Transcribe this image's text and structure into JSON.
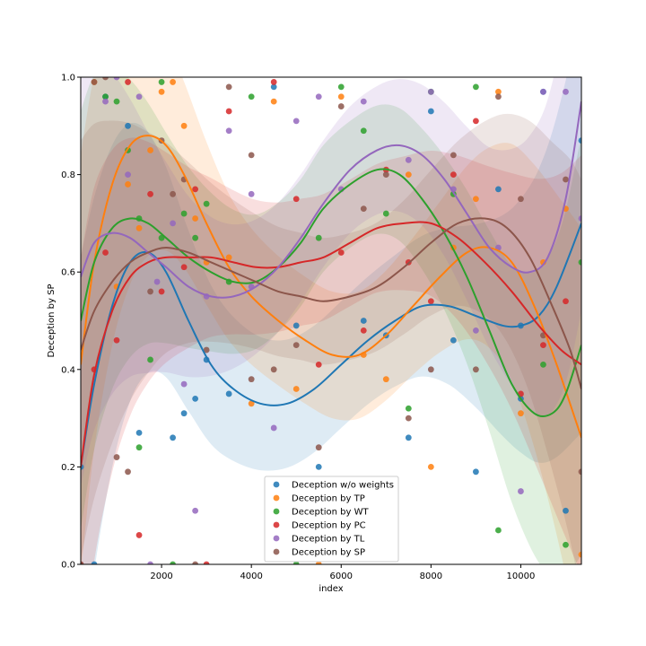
{
  "chart_data": {
    "type": "scatter",
    "xlabel": "index",
    "ylabel": "Deception by SP",
    "xlim": [
      200,
      11350
    ],
    "ylim": [
      0.0,
      1.0
    ],
    "x_ticks": [
      2000,
      4000,
      6000,
      8000,
      10000
    ],
    "y_ticks": [
      0.0,
      0.2,
      0.4,
      0.6,
      0.8,
      1.0
    ],
    "x_tick_labels": [
      "2000",
      "4000",
      "6000",
      "8000",
      "10000"
    ],
    "y_tick_labels": [
      "0.0",
      "0.2",
      "0.4",
      "0.6",
      "0.8",
      "1.0"
    ],
    "grid": false,
    "legend_position": "bottom-center",
    "series": [
      {
        "name": "Deception w/o weights",
        "color": "#1f77b4",
        "points": [
          [
            200,
            0.2
          ],
          [
            500,
            0.0
          ],
          [
            750,
            0.96
          ],
          [
            1250,
            0.9
          ],
          [
            1500,
            0.27
          ],
          [
            2250,
            0.26
          ],
          [
            2500,
            0.31
          ],
          [
            2750,
            0.34
          ],
          [
            3000,
            0.42
          ],
          [
            3500,
            0.35
          ],
          [
            4500,
            0.98
          ],
          [
            5000,
            0.49
          ],
          [
            5500,
            0.2
          ],
          [
            6500,
            0.5
          ],
          [
            7000,
            0.47
          ],
          [
            7500,
            0.26
          ],
          [
            8000,
            0.93
          ],
          [
            8500,
            0.46
          ],
          [
            9000,
            0.19
          ],
          [
            9500,
            0.77
          ],
          [
            10000,
            0.49
          ],
          [
            10000,
            0.34
          ],
          [
            10500,
            0.97
          ],
          [
            11000,
            0.11
          ],
          [
            11350,
            0.87
          ]
        ],
        "curve": [
          [
            200,
            0.2
          ],
          [
            500,
            0.37
          ],
          [
            900,
            0.53
          ],
          [
            1300,
            0.62
          ],
          [
            1700,
            0.64
          ],
          [
            2100,
            0.6
          ],
          [
            2600,
            0.5
          ],
          [
            3100,
            0.41
          ],
          [
            3600,
            0.36
          ],
          [
            4200,
            0.33
          ],
          [
            4800,
            0.33
          ],
          [
            5400,
            0.36
          ],
          [
            6000,
            0.41
          ],
          [
            6600,
            0.46
          ],
          [
            7200,
            0.5
          ],
          [
            7800,
            0.53
          ],
          [
            8400,
            0.53
          ],
          [
            9000,
            0.51
          ],
          [
            9600,
            0.49
          ],
          [
            10000,
            0.49
          ],
          [
            10400,
            0.51
          ],
          [
            10800,
            0.57
          ],
          [
            11350,
            0.7
          ]
        ]
      },
      {
        "name": "Deception by TP",
        "color": "#ff7f0e",
        "points": [
          [
            500,
            0.99
          ],
          [
            1000,
            0.57
          ],
          [
            1250,
            0.78
          ],
          [
            1500,
            0.69
          ],
          [
            1750,
            0.85
          ],
          [
            2000,
            0.97
          ],
          [
            2250,
            0.99
          ],
          [
            2500,
            0.9
          ],
          [
            2750,
            0.71
          ],
          [
            3000,
            0.62
          ],
          [
            3500,
            0.63
          ],
          [
            4000,
            0.33
          ],
          [
            4500,
            0.95
          ],
          [
            5000,
            0.36
          ],
          [
            5500,
            0.0
          ],
          [
            6000,
            0.96
          ],
          [
            6500,
            0.43
          ],
          [
            7000,
            0.38
          ],
          [
            7500,
            0.8
          ],
          [
            8000,
            0.2
          ],
          [
            8500,
            0.65
          ],
          [
            9000,
            0.75
          ],
          [
            9500,
            0.97
          ],
          [
            10000,
            0.31
          ],
          [
            10500,
            0.62
          ],
          [
            11000,
            0.73
          ],
          [
            11350,
            0.02
          ]
        ],
        "curve": [
          [
            200,
            0.41
          ],
          [
            500,
            0.62
          ],
          [
            900,
            0.78
          ],
          [
            1300,
            0.86
          ],
          [
            1700,
            0.88
          ],
          [
            2100,
            0.86
          ],
          [
            2500,
            0.8
          ],
          [
            3000,
            0.7
          ],
          [
            3500,
            0.61
          ],
          [
            4000,
            0.55
          ],
          [
            4600,
            0.5
          ],
          [
            5200,
            0.46
          ],
          [
            5800,
            0.43
          ],
          [
            6400,
            0.43
          ],
          [
            7000,
            0.47
          ],
          [
            7600,
            0.53
          ],
          [
            8200,
            0.59
          ],
          [
            8800,
            0.64
          ],
          [
            9300,
            0.65
          ],
          [
            9800,
            0.62
          ],
          [
            10300,
            0.53
          ],
          [
            10800,
            0.41
          ],
          [
            11350,
            0.26
          ]
        ]
      },
      {
        "name": "Deception by WT",
        "color": "#2ca02c",
        "points": [
          [
            750,
            0.96
          ],
          [
            1000,
            0.95
          ],
          [
            1250,
            0.85
          ],
          [
            1500,
            0.71
          ],
          [
            1500,
            0.24
          ],
          [
            1750,
            0.42
          ],
          [
            2000,
            0.99
          ],
          [
            2000,
            0.67
          ],
          [
            2250,
            0.0
          ],
          [
            2500,
            0.72
          ],
          [
            2750,
            0.67
          ],
          [
            3000,
            0.74
          ],
          [
            3500,
            0.58
          ],
          [
            4000,
            0.96
          ],
          [
            5000,
            0.0
          ],
          [
            5500,
            0.67
          ],
          [
            6000,
            0.98
          ],
          [
            6500,
            0.89
          ],
          [
            7000,
            0.72
          ],
          [
            7500,
            0.32
          ],
          [
            8000,
            0.97
          ],
          [
            8500,
            0.76
          ],
          [
            9000,
            0.98
          ],
          [
            9500,
            0.07
          ],
          [
            10500,
            0.41
          ],
          [
            11000,
            0.04
          ],
          [
            11350,
            0.62
          ]
        ],
        "curve": [
          [
            200,
            0.5
          ],
          [
            500,
            0.62
          ],
          [
            900,
            0.69
          ],
          [
            1300,
            0.71
          ],
          [
            1700,
            0.7
          ],
          [
            2100,
            0.67
          ],
          [
            2600,
            0.63
          ],
          [
            3100,
            0.6
          ],
          [
            3600,
            0.58
          ],
          [
            4100,
            0.58
          ],
          [
            4600,
            0.61
          ],
          [
            5100,
            0.66
          ],
          [
            5600,
            0.73
          ],
          [
            6200,
            0.78
          ],
          [
            6800,
            0.81
          ],
          [
            7300,
            0.8
          ],
          [
            7800,
            0.75
          ],
          [
            8300,
            0.68
          ],
          [
            8800,
            0.59
          ],
          [
            9300,
            0.48
          ],
          [
            9800,
            0.37
          ],
          [
            10300,
            0.31
          ],
          [
            10700,
            0.31
          ],
          [
            11000,
            0.35
          ],
          [
            11350,
            0.45
          ]
        ]
      },
      {
        "name": "Deception by PC",
        "color": "#d62728",
        "points": [
          [
            200,
            0.0
          ],
          [
            500,
            0.4
          ],
          [
            750,
            0.64
          ],
          [
            1000,
            0.46
          ],
          [
            1250,
            0.99
          ],
          [
            1500,
            0.06
          ],
          [
            1750,
            0.76
          ],
          [
            2000,
            0.56
          ],
          [
            2500,
            0.61
          ],
          [
            2750,
            0.77
          ],
          [
            3000,
            0.0
          ],
          [
            3500,
            0.93
          ],
          [
            4500,
            0.99
          ],
          [
            5000,
            0.75
          ],
          [
            5500,
            0.41
          ],
          [
            6000,
            0.64
          ],
          [
            6500,
            0.48
          ],
          [
            7000,
            0.81
          ],
          [
            7500,
            0.62
          ],
          [
            8000,
            0.54
          ],
          [
            8500,
            0.8
          ],
          [
            9000,
            0.91
          ],
          [
            10000,
            0.35
          ],
          [
            10500,
            0.45
          ],
          [
            11000,
            0.54
          ]
        ],
        "curve": [
          [
            200,
            0.2
          ],
          [
            500,
            0.39
          ],
          [
            900,
            0.52
          ],
          [
            1300,
            0.59
          ],
          [
            1700,
            0.62
          ],
          [
            2100,
            0.63
          ],
          [
            2600,
            0.63
          ],
          [
            3100,
            0.63
          ],
          [
            3600,
            0.62
          ],
          [
            4100,
            0.61
          ],
          [
            4600,
            0.61
          ],
          [
            5100,
            0.62
          ],
          [
            5600,
            0.63
          ],
          [
            6200,
            0.66
          ],
          [
            6800,
            0.69
          ],
          [
            7400,
            0.7
          ],
          [
            8000,
            0.7
          ],
          [
            8600,
            0.67
          ],
          [
            9200,
            0.62
          ],
          [
            9800,
            0.56
          ],
          [
            10400,
            0.49
          ],
          [
            10900,
            0.44
          ],
          [
            11350,
            0.41
          ]
        ]
      },
      {
        "name": "Deception by TL",
        "color": "#9467bd",
        "points": [
          [
            750,
            0.95
          ],
          [
            1000,
            1.0
          ],
          [
            1250,
            0.8
          ],
          [
            1500,
            0.96
          ],
          [
            1750,
            0.0
          ],
          [
            1900,
            0.58
          ],
          [
            2250,
            0.7
          ],
          [
            2500,
            0.37
          ],
          [
            2750,
            0.11
          ],
          [
            3000,
            0.55
          ],
          [
            3500,
            0.89
          ],
          [
            4000,
            0.76
          ],
          [
            4000,
            0.57
          ],
          [
            4500,
            0.28
          ],
          [
            5000,
            0.91
          ],
          [
            5500,
            0.96
          ],
          [
            6000,
            0.77
          ],
          [
            6500,
            0.95
          ],
          [
            7500,
            0.83
          ],
          [
            8000,
            0.97
          ],
          [
            8500,
            0.77
          ],
          [
            9000,
            0.48
          ],
          [
            9500,
            0.65
          ],
          [
            10000,
            0.15
          ],
          [
            10500,
            0.97
          ],
          [
            11000,
            0.97
          ],
          [
            11350,
            0.71
          ]
        ],
        "curve": [
          [
            200,
            0.59
          ],
          [
            500,
            0.66
          ],
          [
            900,
            0.68
          ],
          [
            1300,
            0.67
          ],
          [
            1700,
            0.64
          ],
          [
            2100,
            0.61
          ],
          [
            2600,
            0.57
          ],
          [
            3100,
            0.55
          ],
          [
            3600,
            0.55
          ],
          [
            4100,
            0.57
          ],
          [
            4600,
            0.61
          ],
          [
            5100,
            0.67
          ],
          [
            5600,
            0.74
          ],
          [
            6200,
            0.81
          ],
          [
            6800,
            0.85
          ],
          [
            7300,
            0.86
          ],
          [
            7800,
            0.84
          ],
          [
            8300,
            0.79
          ],
          [
            8800,
            0.72
          ],
          [
            9300,
            0.65
          ],
          [
            9800,
            0.61
          ],
          [
            10200,
            0.6
          ],
          [
            10600,
            0.63
          ],
          [
            11000,
            0.75
          ],
          [
            11350,
            0.95
          ]
        ]
      },
      {
        "name": "Deception by SP",
        "color": "#8c564b",
        "points": [
          [
            200,
            0.0
          ],
          [
            500,
            0.99
          ],
          [
            750,
            1.0
          ],
          [
            1000,
            0.22
          ],
          [
            1250,
            0.19
          ],
          [
            1750,
            0.56
          ],
          [
            2000,
            0.87
          ],
          [
            2250,
            0.76
          ],
          [
            2500,
            0.79
          ],
          [
            2750,
            0.0
          ],
          [
            3000,
            0.44
          ],
          [
            3500,
            0.98
          ],
          [
            4000,
            0.84
          ],
          [
            4000,
            0.38
          ],
          [
            4500,
            0.4
          ],
          [
            5000,
            0.45
          ],
          [
            5500,
            0.24
          ],
          [
            6000,
            0.94
          ],
          [
            6500,
            0.73
          ],
          [
            7000,
            0.8
          ],
          [
            7500,
            0.3
          ],
          [
            8000,
            0.4
          ],
          [
            8500,
            0.84
          ],
          [
            9000,
            0.4
          ],
          [
            9500,
            0.96
          ],
          [
            10000,
            0.75
          ],
          [
            10500,
            0.47
          ],
          [
            11000,
            0.79
          ],
          [
            11350,
            0.19
          ]
        ],
        "curve": [
          [
            200,
            0.44
          ],
          [
            500,
            0.52
          ],
          [
            900,
            0.58
          ],
          [
            1300,
            0.62
          ],
          [
            1700,
            0.64
          ],
          [
            2100,
            0.65
          ],
          [
            2600,
            0.64
          ],
          [
            3100,
            0.62
          ],
          [
            3600,
            0.6
          ],
          [
            4100,
            0.58
          ],
          [
            4600,
            0.56
          ],
          [
            5100,
            0.55
          ],
          [
            5600,
            0.54
          ],
          [
            6200,
            0.55
          ],
          [
            6800,
            0.57
          ],
          [
            7400,
            0.61
          ],
          [
            8000,
            0.66
          ],
          [
            8600,
            0.7
          ],
          [
            9200,
            0.71
          ],
          [
            9700,
            0.69
          ],
          [
            10200,
            0.63
          ],
          [
            10700,
            0.53
          ],
          [
            11100,
            0.44
          ],
          [
            11350,
            0.36
          ]
        ]
      }
    ]
  }
}
